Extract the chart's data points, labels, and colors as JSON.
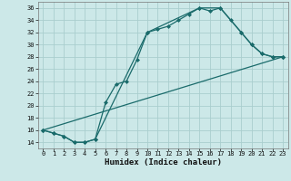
{
  "xlabel": "Humidex (Indice chaleur)",
  "background_color": "#cce8e8",
  "grid_color": "#aacece",
  "line_color": "#1a6b6b",
  "xlim": [
    -0.5,
    23.5
  ],
  "ylim": [
    13,
    37
  ],
  "xticks": [
    0,
    1,
    2,
    3,
    4,
    5,
    6,
    7,
    8,
    9,
    10,
    11,
    12,
    13,
    14,
    15,
    16,
    17,
    18,
    19,
    20,
    21,
    22,
    23
  ],
  "yticks": [
    14,
    16,
    18,
    20,
    22,
    24,
    26,
    28,
    30,
    32,
    34,
    36
  ],
  "series1_x": [
    0,
    1,
    2,
    3,
    4,
    5,
    6,
    7,
    8,
    9,
    10,
    11,
    12,
    13,
    14,
    15,
    16,
    17,
    18,
    19,
    20,
    21,
    22,
    23
  ],
  "series1_y": [
    16,
    15.5,
    15,
    14,
    14,
    14.5,
    20.5,
    23.5,
    24,
    27.5,
    32,
    32.5,
    33,
    34,
    35,
    36,
    35.5,
    36,
    34,
    32,
    30,
    28.5,
    28,
    28
  ],
  "series2_x": [
    0,
    1,
    2,
    3,
    4,
    5,
    10,
    15,
    17,
    19,
    20,
    21,
    22,
    23
  ],
  "series2_y": [
    16,
    15.5,
    15,
    14,
    14,
    14.5,
    32,
    36,
    36,
    32,
    30,
    28.5,
    28,
    28
  ],
  "series3_x": [
    0,
    23
  ],
  "series3_y": [
    16,
    28
  ]
}
